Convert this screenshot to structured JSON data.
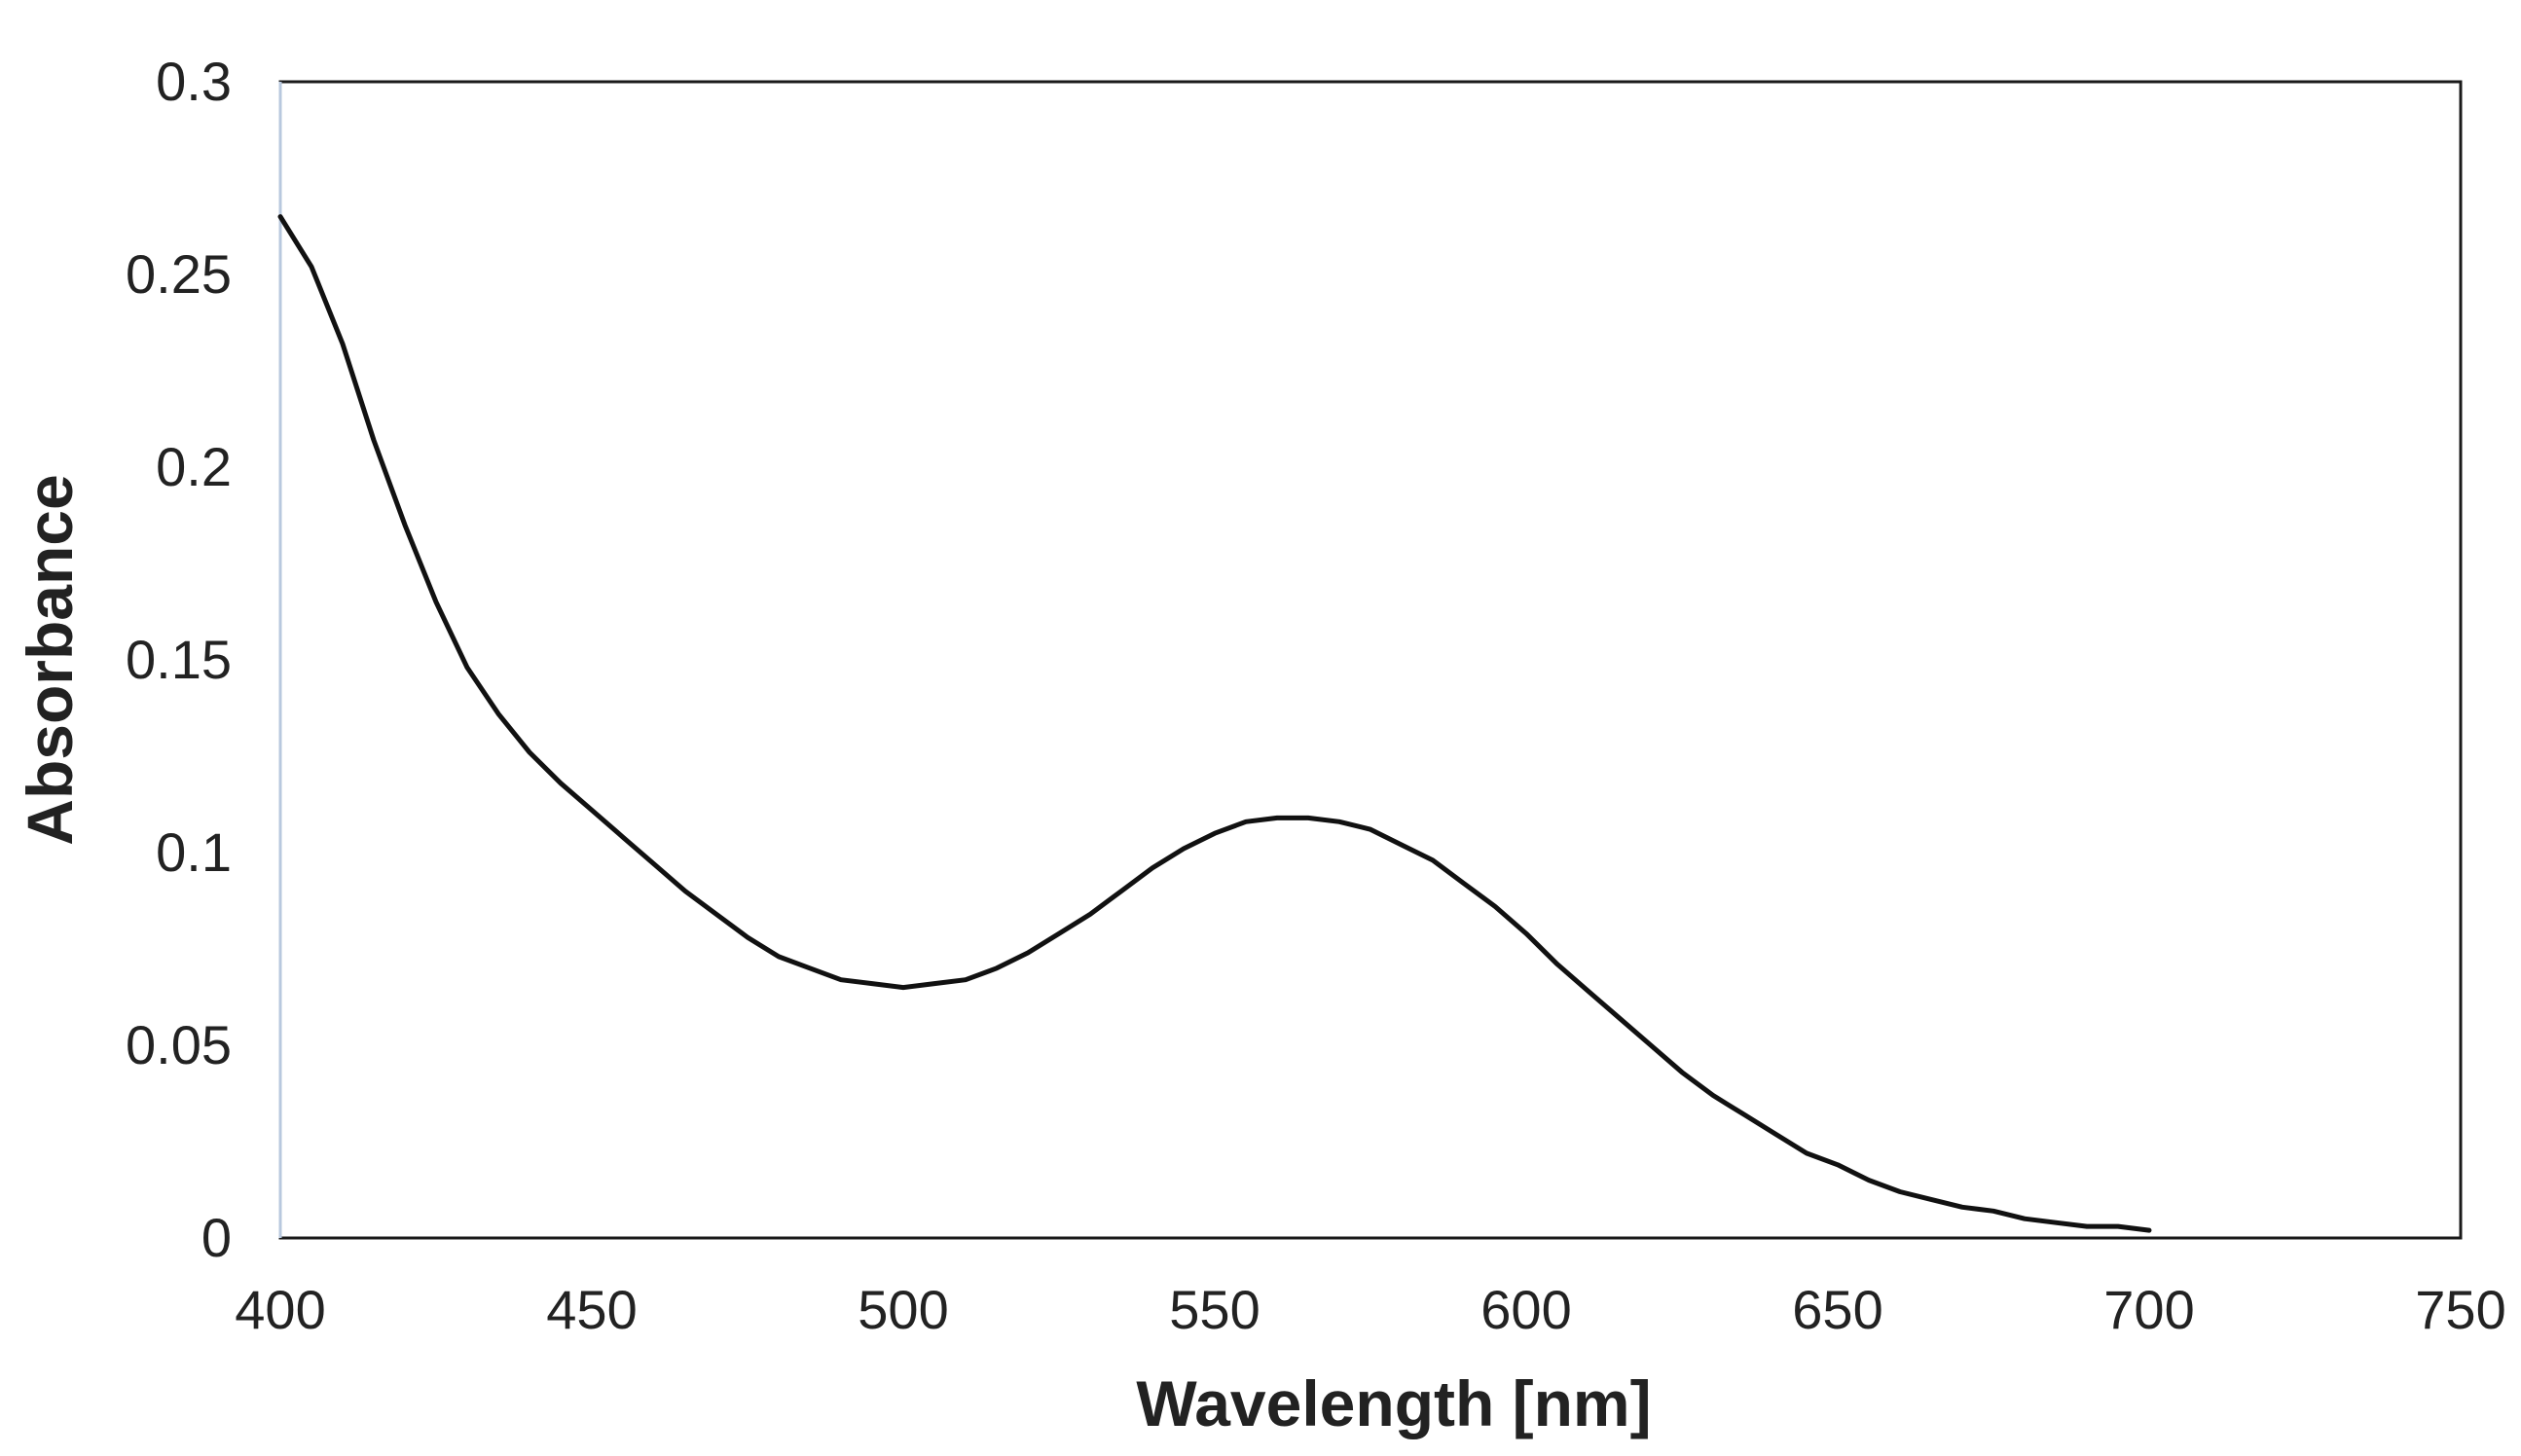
{
  "chart_data": {
    "type": "line",
    "title": "",
    "xlabel": "Wavelength [nm]",
    "ylabel": "Absorbance",
    "xlim": [
      400,
      750
    ],
    "ylim": [
      0,
      0.3
    ],
    "x_ticks": [
      "400",
      "450",
      "500",
      "550",
      "600",
      "650",
      "700",
      "750"
    ],
    "y_ticks": [
      "0",
      "0.05",
      "0.1",
      "0.15",
      "0.2",
      "0.25",
      "0.3"
    ],
    "grid": false,
    "legend": "none",
    "series": [
      {
        "name": "Absorbance",
        "x": [
          400,
          405,
          410,
          415,
          420,
          425,
          430,
          435,
          440,
          445,
          450,
          455,
          460,
          465,
          470,
          475,
          480,
          485,
          490,
          495,
          500,
          505,
          510,
          515,
          520,
          525,
          530,
          535,
          540,
          545,
          550,
          555,
          560,
          565,
          570,
          575,
          580,
          585,
          590,
          595,
          600,
          605,
          610,
          615,
          620,
          625,
          630,
          635,
          640,
          645,
          650,
          655,
          660,
          665,
          670,
          675,
          680,
          685,
          690,
          695,
          700
        ],
        "y": [
          0.265,
          0.252,
          0.232,
          0.207,
          0.185,
          0.165,
          0.148,
          0.136,
          0.126,
          0.118,
          0.111,
          0.104,
          0.097,
          0.09,
          0.084,
          0.078,
          0.073,
          0.07,
          0.067,
          0.066,
          0.065,
          0.066,
          0.067,
          0.07,
          0.074,
          0.079,
          0.084,
          0.09,
          0.096,
          0.101,
          0.105,
          0.108,
          0.109,
          0.109,
          0.108,
          0.106,
          0.102,
          0.098,
          0.092,
          0.086,
          0.079,
          0.071,
          0.064,
          0.057,
          0.05,
          0.043,
          0.037,
          0.032,
          0.027,
          0.022,
          0.019,
          0.015,
          0.012,
          0.01,
          0.008,
          0.007,
          0.005,
          0.004,
          0.003,
          0.003,
          0.002
        ]
      }
    ],
    "colors": {
      "line": "#111111",
      "frame": "#1a1a1a",
      "left_axis": "#b8c8de",
      "text": "#222222"
    }
  }
}
